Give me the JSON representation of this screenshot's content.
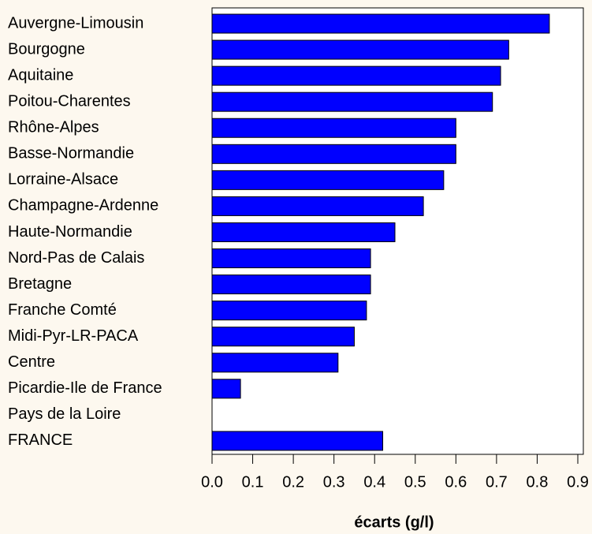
{
  "chart_data": {
    "type": "bar",
    "orientation": "horizontal",
    "x_label": "écarts (g/l)",
    "categories": [
      "Auvergne-Limousin",
      "Bourgogne",
      "Aquitaine",
      "Poitou-Charentes",
      "Rhône-Alpes",
      "Basse-Normandie",
      "Lorraine-Alsace",
      "Champagne-Ardenne",
      "Haute-Normandie",
      "Nord-Pas de Calais",
      "Bretagne",
      "Franche Comté",
      "Midi-Pyr-LR-PACA",
      "Centre",
      "Picardie-Ile de France",
      "Pays de la Loire",
      "FRANCE"
    ],
    "values": [
      0.83,
      0.73,
      0.71,
      0.69,
      0.6,
      0.6,
      0.57,
      0.52,
      0.45,
      0.39,
      0.39,
      0.38,
      0.35,
      0.31,
      0.07,
      null,
      0.42
    ],
    "color": "#0000ff",
    "xlim": [
      0,
      0.9
    ],
    "xticks": [
      {
        "value": 0,
        "label": "0.0"
      },
      0.1,
      0.2,
      0.3,
      0.4,
      0.5,
      0.6,
      0.7,
      0.8,
      0.9
    ]
  }
}
